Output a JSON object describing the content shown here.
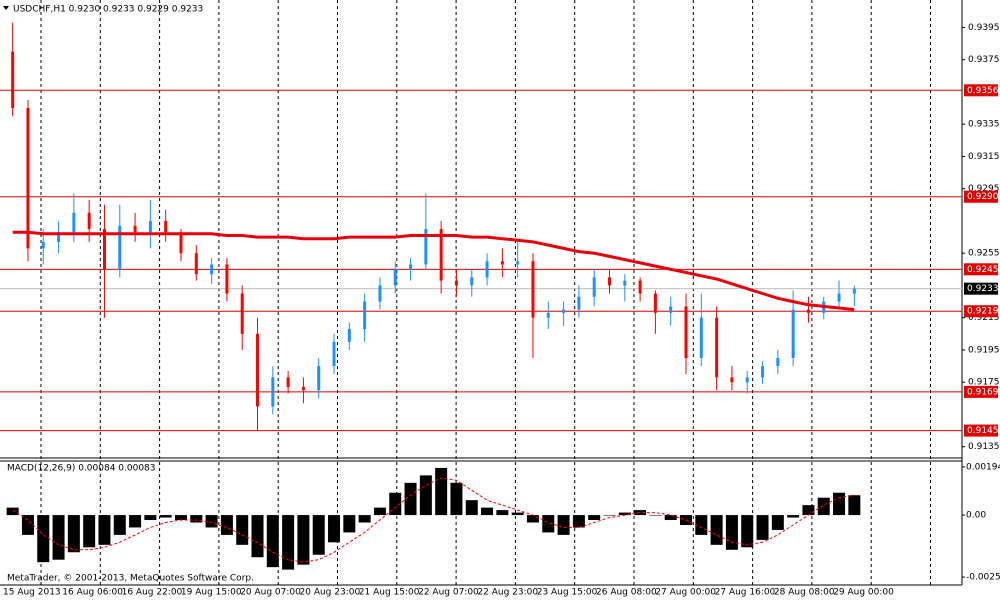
{
  "chart_data": [
    {
      "type": "candlestick",
      "title": "USDCHF,H1  0.9230 0.9233 0.9229 0.9233",
      "x_labels": [
        "15 Aug 2013",
        "16 Aug 06:00",
        "16 Aug 22:00",
        "19 Aug 15:00",
        "20 Aug 07:00",
        "20 Aug 23:00",
        "21 Aug 15:00",
        "22 Aug 07:00",
        "22 Aug 23:00",
        "23 Aug 15:00",
        "26 Aug 08:00",
        "27 Aug 00:00",
        "27 Aug 16:00",
        "28 Aug 08:00",
        "29 Aug 00:00"
      ],
      "open": [
        0.938,
        0.9345,
        0.9258,
        0.9262,
        0.9268,
        0.928,
        0.927,
        0.9245,
        0.9272,
        0.9268,
        0.9275,
        0.9268,
        0.9255,
        0.9242,
        0.9248,
        0.923,
        0.9205,
        0.916,
        0.9178,
        0.9172,
        0.917,
        0.9185,
        0.92,
        0.9208,
        0.9225,
        0.9235,
        0.9245,
        0.9248,
        0.927,
        0.9238,
        0.9235,
        0.924,
        0.925,
        0.9248,
        0.925,
        0.9215,
        0.9218,
        0.922,
        0.9228,
        0.924,
        0.9235,
        0.9238,
        0.923,
        0.9218,
        0.9222,
        0.919,
        0.9215,
        0.9178,
        0.9175,
        0.9178,
        0.9185,
        0.919,
        0.922,
        0.9218,
        0.9225,
        0.923
      ],
      "high": [
        0.9398,
        0.935,
        0.927,
        0.9275,
        0.9292,
        0.9288,
        0.9285,
        0.9285,
        0.928,
        0.9288,
        0.9282,
        0.927,
        0.926,
        0.9252,
        0.9252,
        0.9235,
        0.9215,
        0.9185,
        0.9182,
        0.9178,
        0.919,
        0.9205,
        0.9212,
        0.923,
        0.924,
        0.925,
        0.9252,
        0.9292,
        0.9275,
        0.9245,
        0.9245,
        0.9255,
        0.9258,
        0.9262,
        0.9255,
        0.9225,
        0.9225,
        0.9235,
        0.9245,
        0.9245,
        0.9242,
        0.924,
        0.9232,
        0.9228,
        0.923,
        0.923,
        0.9222,
        0.9185,
        0.9182,
        0.9188,
        0.9195,
        0.9232,
        0.9228,
        0.9228,
        0.9238,
        0.9235
      ],
      "low": [
        0.934,
        0.925,
        0.9248,
        0.9255,
        0.9262,
        0.9262,
        0.9215,
        0.924,
        0.9262,
        0.9258,
        0.9262,
        0.925,
        0.9238,
        0.9236,
        0.9225,
        0.9195,
        0.9145,
        0.9155,
        0.9168,
        0.9162,
        0.9165,
        0.918,
        0.9195,
        0.92,
        0.922,
        0.923,
        0.9238,
        0.9245,
        0.923,
        0.9228,
        0.9228,
        0.9235,
        0.924,
        0.924,
        0.919,
        0.9208,
        0.921,
        0.9215,
        0.9222,
        0.923,
        0.9225,
        0.9225,
        0.9205,
        0.921,
        0.918,
        0.9185,
        0.917,
        0.917,
        0.9168,
        0.9174,
        0.918,
        0.9185,
        0.9212,
        0.9214,
        0.922,
        0.9222
      ],
      "close": [
        0.9345,
        0.9258,
        0.9262,
        0.9268,
        0.928,
        0.927,
        0.9245,
        0.9272,
        0.9268,
        0.9275,
        0.9268,
        0.9255,
        0.9242,
        0.9248,
        0.923,
        0.9205,
        0.916,
        0.9178,
        0.9172,
        0.917,
        0.9185,
        0.92,
        0.9208,
        0.9225,
        0.9235,
        0.9245,
        0.9248,
        0.927,
        0.9238,
        0.9235,
        0.924,
        0.925,
        0.9248,
        0.925,
        0.9215,
        0.9218,
        0.922,
        0.9228,
        0.924,
        0.9235,
        0.9238,
        0.923,
        0.9218,
        0.9222,
        0.919,
        0.9215,
        0.9178,
        0.9175,
        0.9178,
        0.9185,
        0.919,
        0.922,
        0.9218,
        0.9225,
        0.923,
        0.9233
      ],
      "ma_values": [
        0.9268,
        0.9268,
        0.9267,
        0.9267,
        0.9267,
        0.9267,
        0.9267,
        0.9267,
        0.9267,
        0.9267,
        0.9267,
        0.9267,
        0.9267,
        0.9267,
        0.9266,
        0.9266,
        0.9265,
        0.9265,
        0.9265,
        0.9264,
        0.9264,
        0.9264,
        0.9265,
        0.9265,
        0.9265,
        0.9265,
        0.9266,
        0.9266,
        0.9266,
        0.9266,
        0.9265,
        0.9265,
        0.9264,
        0.9263,
        0.9262,
        0.926,
        0.9258,
        0.9256,
        0.9255,
        0.9253,
        0.9251,
        0.9249,
        0.9247,
        0.9245,
        0.9243,
        0.9241,
        0.9239,
        0.9236,
        0.9233,
        0.923,
        0.9227,
        0.9225,
        0.9223,
        0.9222,
        0.9221,
        0.922
      ],
      "ma_color": "#e8000b",
      "up_color": "#1e90ff",
      "down_color": "#ff0000",
      "levels": [
        0.9356,
        {
          "value": 0.929,
          "label": "0.9290"
        },
        0.9245,
        0.9219,
        0.9169,
        0.9145
      ],
      "level_color": "#e00000",
      "last_price": 0.9233,
      "ylim": [
        0.9128,
        0.9412
      ],
      "yticks": [
        0.9395,
        0.9375,
        0.9335,
        0.9315,
        0.9295,
        0.9255,
        0.9215,
        0.9195,
        0.9175,
        0.9135
      ]
    },
    {
      "type": "macd",
      "title": "MACD(12,26,9) 0.00084 0.00083",
      "histogram": [
        0.0003,
        -0.0008,
        -0.0019,
        -0.0018,
        -0.0015,
        -0.0013,
        -0.0012,
        -0.0008,
        -0.0005,
        -0.0002,
        -0.0001,
        -0.0002,
        -0.0003,
        -0.0005,
        -0.0008,
        -0.0012,
        -0.0017,
        -0.0021,
        -0.0022,
        -0.002,
        -0.0016,
        -0.0011,
        -0.0007,
        -0.0003,
        0.0003,
        0.0009,
        0.0013,
        0.0016,
        0.0019,
        0.0013,
        0.0006,
        0.0003,
        0.0002,
        0.0001,
        -0.0003,
        -0.0007,
        -0.0008,
        -0.0005,
        -0.0002,
        0,
        0.0001,
        0.0002,
        0,
        -0.0002,
        -0.0004,
        -0.0008,
        -0.0012,
        -0.0014,
        -0.0013,
        -0.001,
        -0.0006,
        -0.0001,
        0.0004,
        0.0007,
        0.0009,
        0.0008
      ],
      "signal": [
        0.0002,
        -0.0002,
        -0.0008,
        -0.0012,
        -0.0014,
        -0.0014,
        -0.0013,
        -0.0011,
        -0.0008,
        -0.0005,
        -0.0003,
        -0.0002,
        -0.0002,
        -0.0003,
        -0.0005,
        -0.0008,
        -0.0011,
        -0.0015,
        -0.0018,
        -0.0019,
        -0.0018,
        -0.0015,
        -0.0011,
        -0.0007,
        -0.0002,
        0.0003,
        0.0008,
        0.0012,
        0.0015,
        0.0014,
        0.001,
        0.0006,
        0.0004,
        0.0002,
        0,
        -0.0003,
        -0.0005,
        -0.0005,
        -0.0003,
        -0.0001,
        0,
        0.0001,
        0.0001,
        0,
        -0.0002,
        -0.0005,
        -0.0008,
        -0.0011,
        -0.0012,
        -0.0011,
        -0.0008,
        -0.0004,
        0,
        0.0004,
        0.0007,
        0.0008
      ],
      "histogram_color": "#000000",
      "signal_color": "#ff0000",
      "ylim": [
        -0.00282,
        0.00218
      ],
      "yticks": [
        0.00194,
        {
          "value": 0,
          "label": "0.00"
        },
        -0.0025
      ],
      "footer": "MetaTrader, © 2001-2013, MetaQuotes Software Corp."
    }
  ]
}
